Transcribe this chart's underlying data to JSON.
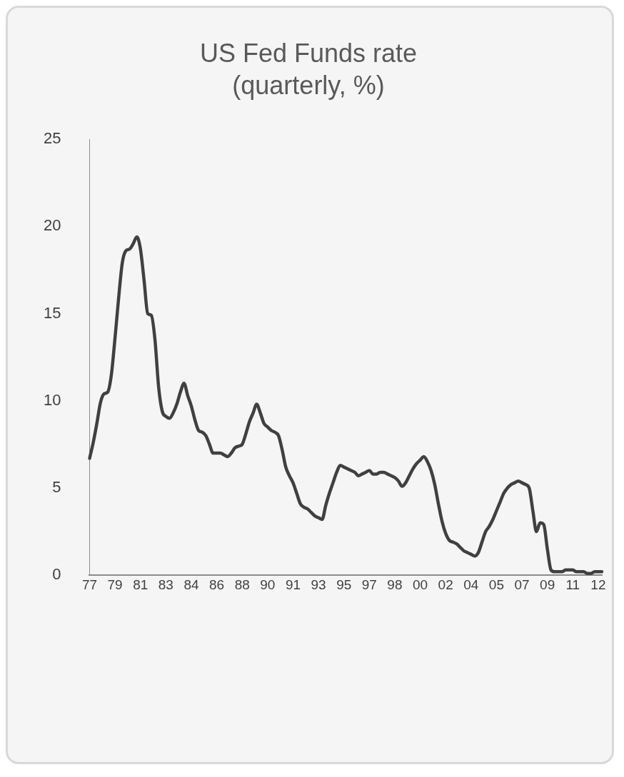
{
  "chart_data": {
    "type": "line",
    "title": "US Fed Funds rate\n(quarterly, %)",
    "grid": false,
    "legend": false,
    "marker": "none",
    "line_style": "solid",
    "categories": [
      "77",
      null,
      null,
      null,
      null,
      null,
      null,
      "79",
      null,
      null,
      null,
      null,
      null,
      null,
      "81",
      null,
      null,
      null,
      null,
      null,
      null,
      "83",
      null,
      null,
      null,
      null,
      null,
      null,
      "84",
      null,
      null,
      null,
      null,
      null,
      null,
      "86",
      null,
      null,
      null,
      null,
      null,
      null,
      "88",
      null,
      null,
      null,
      null,
      null,
      null,
      "90",
      null,
      null,
      null,
      null,
      null,
      null,
      "91",
      null,
      null,
      null,
      null,
      null,
      null,
      "93",
      null,
      null,
      null,
      null,
      null,
      null,
      "95",
      null,
      null,
      null,
      null,
      null,
      null,
      "97",
      null,
      null,
      null,
      null,
      null,
      null,
      "98",
      null,
      null,
      null,
      null,
      null,
      null,
      "00",
      null,
      null,
      null,
      null,
      null,
      null,
      "02",
      null,
      null,
      null,
      null,
      null,
      null,
      "04",
      null,
      null,
      null,
      null,
      null,
      null,
      "05",
      null,
      null,
      null,
      null,
      null,
      null,
      "07",
      null,
      null,
      null,
      null,
      null,
      null,
      "09",
      null,
      null,
      null,
      null,
      null,
      null,
      "11",
      null,
      null,
      null,
      null,
      null,
      null,
      "12",
      null
    ],
    "ylim": [
      0,
      25
    ],
    "yticks": [
      0,
      5,
      10,
      15,
      20,
      25
    ],
    "series": [
      {
        "color": "#404040",
        "values": [
          6.7,
          7.6,
          8.7,
          9.9,
          10.4,
          10.5,
          11.5,
          13.6,
          15.9,
          17.9,
          18.6,
          18.7,
          19.0,
          19.4,
          18.7,
          16.9,
          15.0,
          14.9,
          13.5,
          10.8,
          9.4,
          9.1,
          9.0,
          9.3,
          9.8,
          10.5,
          11.0,
          10.3,
          9.7,
          8.9,
          8.3,
          8.2,
          8.0,
          7.5,
          7.0,
          7.0,
          7.0,
          6.9,
          6.8,
          7.0,
          7.3,
          7.4,
          7.5,
          8.1,
          8.8,
          9.3,
          9.8,
          9.3,
          8.7,
          8.5,
          8.3,
          8.2,
          8.0,
          7.2,
          6.2,
          5.7,
          5.3,
          4.7,
          4.1,
          3.9,
          3.8,
          3.6,
          3.4,
          3.3,
          3.2,
          4.0,
          4.7,
          5.3,
          5.9,
          6.3,
          6.2,
          6.1,
          6.0,
          5.9,
          5.7,
          5.8,
          5.9,
          6.0,
          5.8,
          5.8,
          5.9,
          5.9,
          5.8,
          5.7,
          5.6,
          5.4,
          5.1,
          5.3,
          5.7,
          6.1,
          6.4,
          6.6,
          6.8,
          6.5,
          6.0,
          5.2,
          4.1,
          3.1,
          2.4,
          2.0,
          1.9,
          1.8,
          1.6,
          1.4,
          1.3,
          1.2,
          1.1,
          1.3,
          1.9,
          2.5,
          2.8,
          3.2,
          3.7,
          4.2,
          4.7,
          5.0,
          5.2,
          5.3,
          5.4,
          5.3,
          5.2,
          5.0,
          3.7,
          2.5,
          3.0,
          2.9,
          1.5,
          0.3,
          0.2,
          0.2,
          0.2,
          0.3,
          0.3,
          0.3,
          0.2,
          0.2,
          0.2,
          0.1,
          0.1,
          0.2,
          0.2,
          0.2
        ]
      }
    ]
  }
}
